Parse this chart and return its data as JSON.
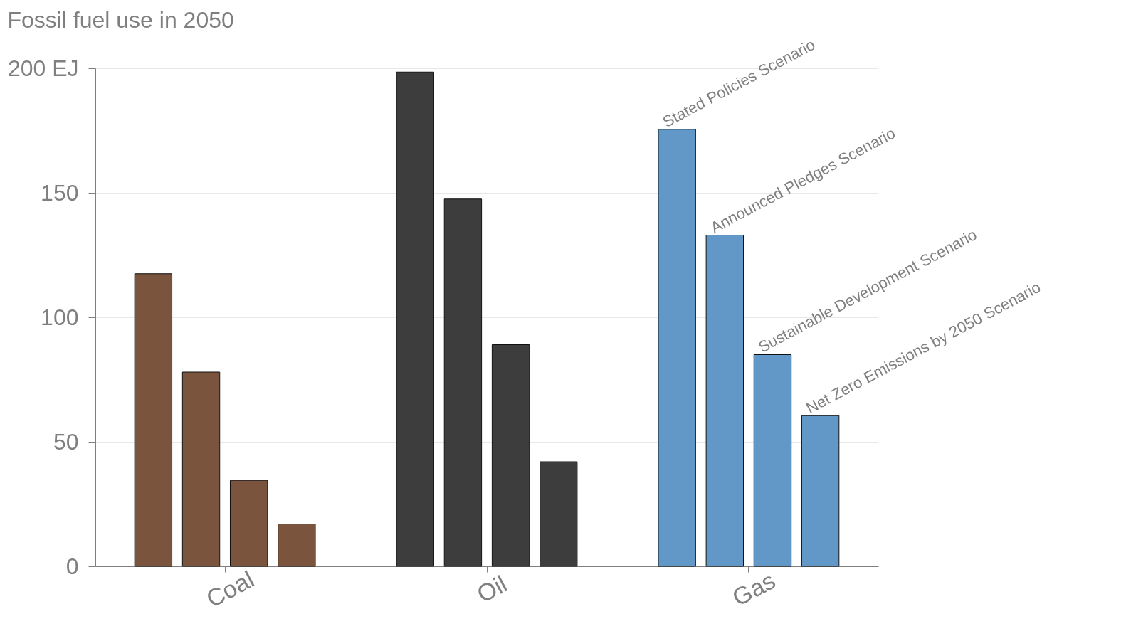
{
  "chart_data": {
    "type": "bar",
    "title": "Fossil fuel use in 2050",
    "categories": [
      "Coal",
      "Oil",
      "Gas"
    ],
    "series": [
      {
        "name": "Stated Policies Scenario",
        "colors": [
          "#7a543c",
          "#3d3d3d",
          "#6198c8"
        ],
        "values": [
          117.5,
          198.5,
          175.5
        ]
      },
      {
        "name": "Announced Pledges Scenario",
        "colors": [
          "#7a543c",
          "#3d3d3d",
          "#6198c8"
        ],
        "values": [
          78,
          147.5,
          133
        ]
      },
      {
        "name": "Sustainable Development Scenario",
        "colors": [
          "#7a543c",
          "#3d3d3d",
          "#6198c8"
        ],
        "values": [
          34.5,
          89,
          85
        ]
      },
      {
        "name": "Net Zero Emissions by 2050 Scenario",
        "colors": [
          "#7a543c",
          "#3d3d3d",
          "#6198c8"
        ],
        "values": [
          17,
          42,
          60.5
        ]
      }
    ],
    "ylim": [
      0,
      200
    ],
    "yticks": [
      0,
      50,
      100,
      150,
      {
        "value": 200,
        "label": "200 EJ"
      }
    ],
    "grid": "y"
  }
}
